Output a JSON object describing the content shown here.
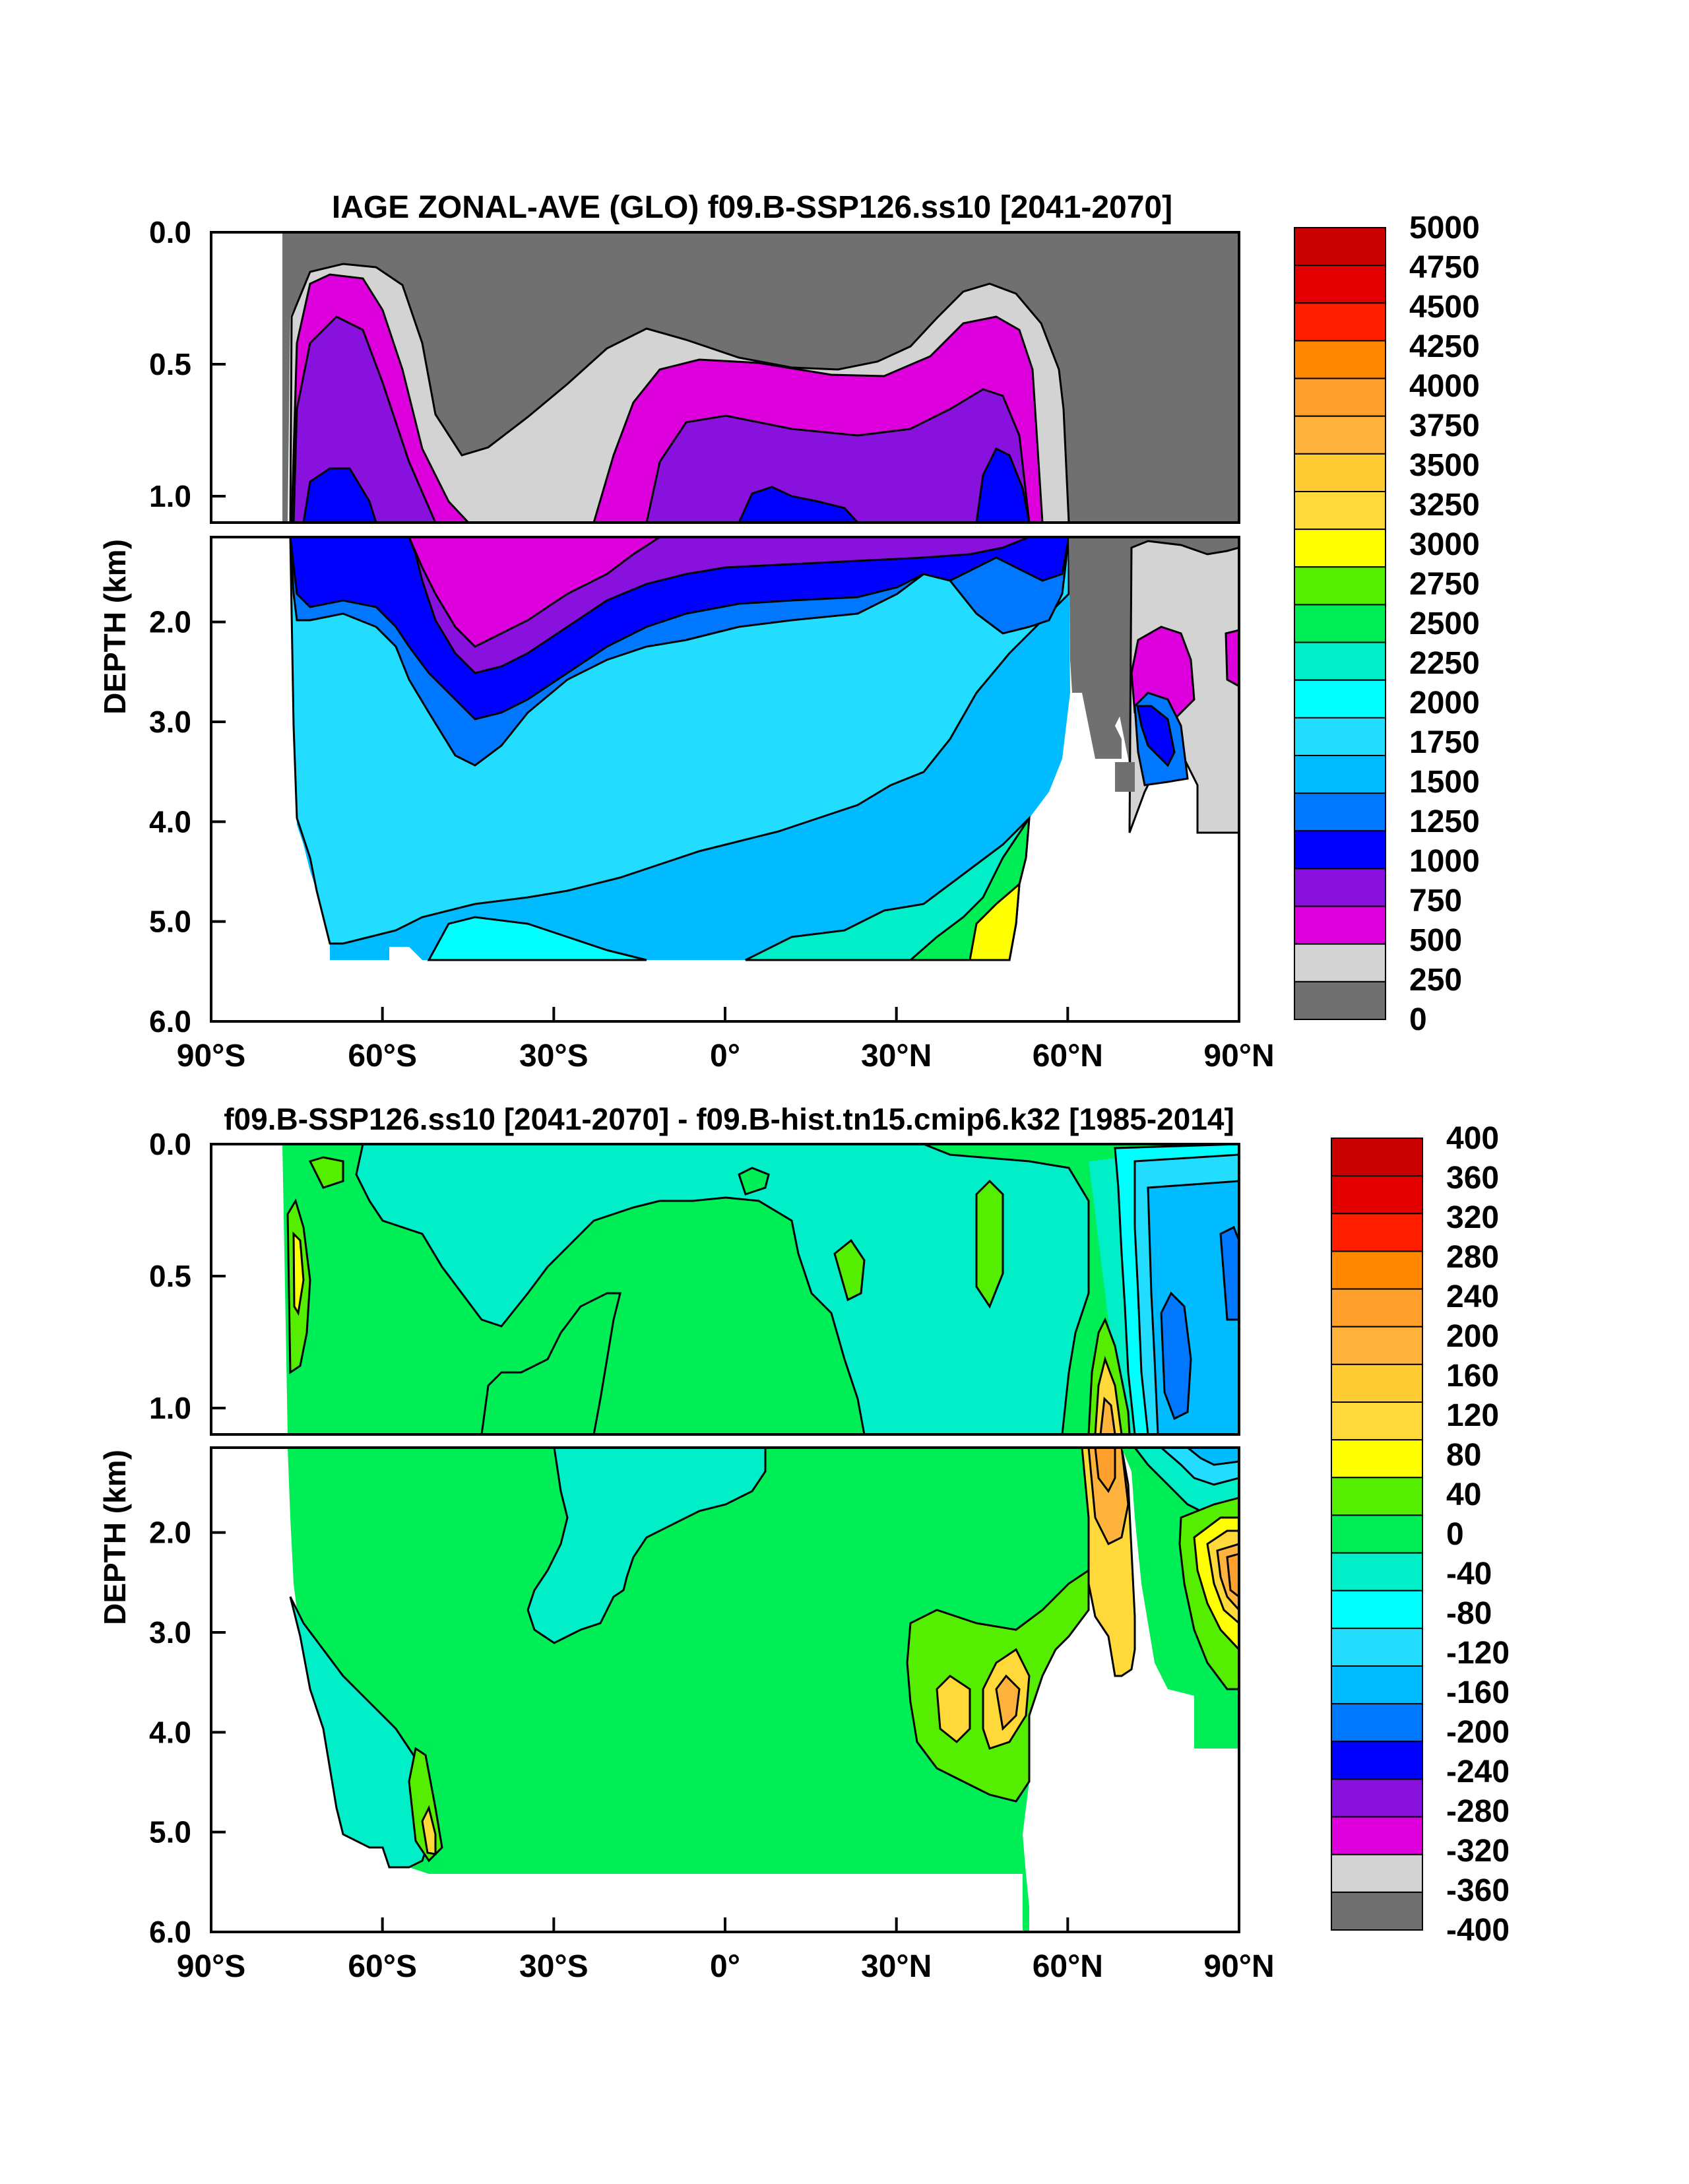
{
  "chart_data": [
    {
      "type": "heatmap",
      "title": "IAGE ZONAL-AVE (GLO) f09.B-SSP126.ss10 [2041-2070]",
      "ylabel": "DEPTH (km)",
      "xlabel": "",
      "x_ticks": [
        "90°S",
        "60°S",
        "30°S",
        "0°",
        "30°N",
        "60°N",
        "90°N"
      ],
      "x_tick_values": [
        -90,
        -60,
        -30,
        0,
        30,
        60,
        90
      ],
      "y_ticks_upper": [
        "0.0",
        "0.5",
        "1.0"
      ],
      "y_ticks_lower": [
        "2.0",
        "3.0",
        "4.0",
        "5.0",
        "6.0"
      ],
      "y_tick_values_upper": [
        0,
        0.5,
        1.0
      ],
      "y_tick_values_lower": [
        2,
        3,
        4,
        5,
        6
      ],
      "xlim": [
        -90,
        90
      ],
      "ylim_upper": [
        0,
        1.1
      ],
      "ylim_lower": [
        1.15,
        6.0
      ],
      "colorbar": {
        "levels": [
          "5000",
          "4750",
          "4500",
          "4250",
          "4000",
          "3750",
          "3500",
          "3250",
          "3000",
          "2750",
          "2500",
          "2250",
          "2000",
          "1750",
          "1500",
          "1250",
          "1000",
          "750",
          "500",
          "250",
          "0"
        ],
        "colors": [
          "#c80000",
          "#e50000",
          "#ff1f00",
          "#ff8800",
          "#ff9f2c",
          "#ffb23c",
          "#ffcc33",
          "#ffd93a",
          "#ffff00",
          "#55ee00",
          "#00ee55",
          "#00eec8",
          "#00ffff",
          "#22ddff",
          "#00bbff",
          "#0077ff",
          "#0000ff",
          "#8811dd",
          "#dd00dd",
          "#d3d3d3",
          "#707070"
        ]
      }
    },
    {
      "type": "heatmap",
      "title": "f09.B-SSP126.ss10 [2041-2070] - f09.B-hist.tn15.cmip6.k32 [1985-2014]",
      "ylabel": "DEPTH (km)",
      "xlabel": "",
      "x_ticks": [
        "90°S",
        "60°S",
        "30°S",
        "0°",
        "30°N",
        "60°N",
        "90°N"
      ],
      "x_tick_values": [
        -90,
        -60,
        -30,
        0,
        30,
        60,
        90
      ],
      "y_ticks_upper": [
        "0.0",
        "0.5",
        "1.0"
      ],
      "y_ticks_lower": [
        "2.0",
        "3.0",
        "4.0",
        "5.0",
        "6.0"
      ],
      "y_tick_values_upper": [
        0,
        0.5,
        1.0
      ],
      "y_tick_values_lower": [
        2,
        3,
        4,
        5,
        6
      ],
      "xlim": [
        -90,
        90
      ],
      "ylim_upper": [
        0,
        1.1
      ],
      "ylim_lower": [
        1.15,
        6.0
      ],
      "colorbar": {
        "levels": [
          "400",
          "360",
          "320",
          "280",
          "240",
          "200",
          "160",
          "120",
          "80",
          "40",
          "0",
          "-40",
          "-80",
          "-120",
          "-160",
          "-200",
          "-240",
          "-280",
          "-320",
          "-360",
          "-400"
        ],
        "colors": [
          "#c80000",
          "#e50000",
          "#ff1f00",
          "#ff8800",
          "#ff9f2c",
          "#ffb23c",
          "#ffcc33",
          "#ffd93a",
          "#ffff00",
          "#55ee00",
          "#00ee55",
          "#00eec8",
          "#00ffff",
          "#22ddff",
          "#00bbff",
          "#0077ff",
          "#0000ff",
          "#8811dd",
          "#dd00dd",
          "#d3d3d3",
          "#707070"
        ]
      }
    }
  ]
}
